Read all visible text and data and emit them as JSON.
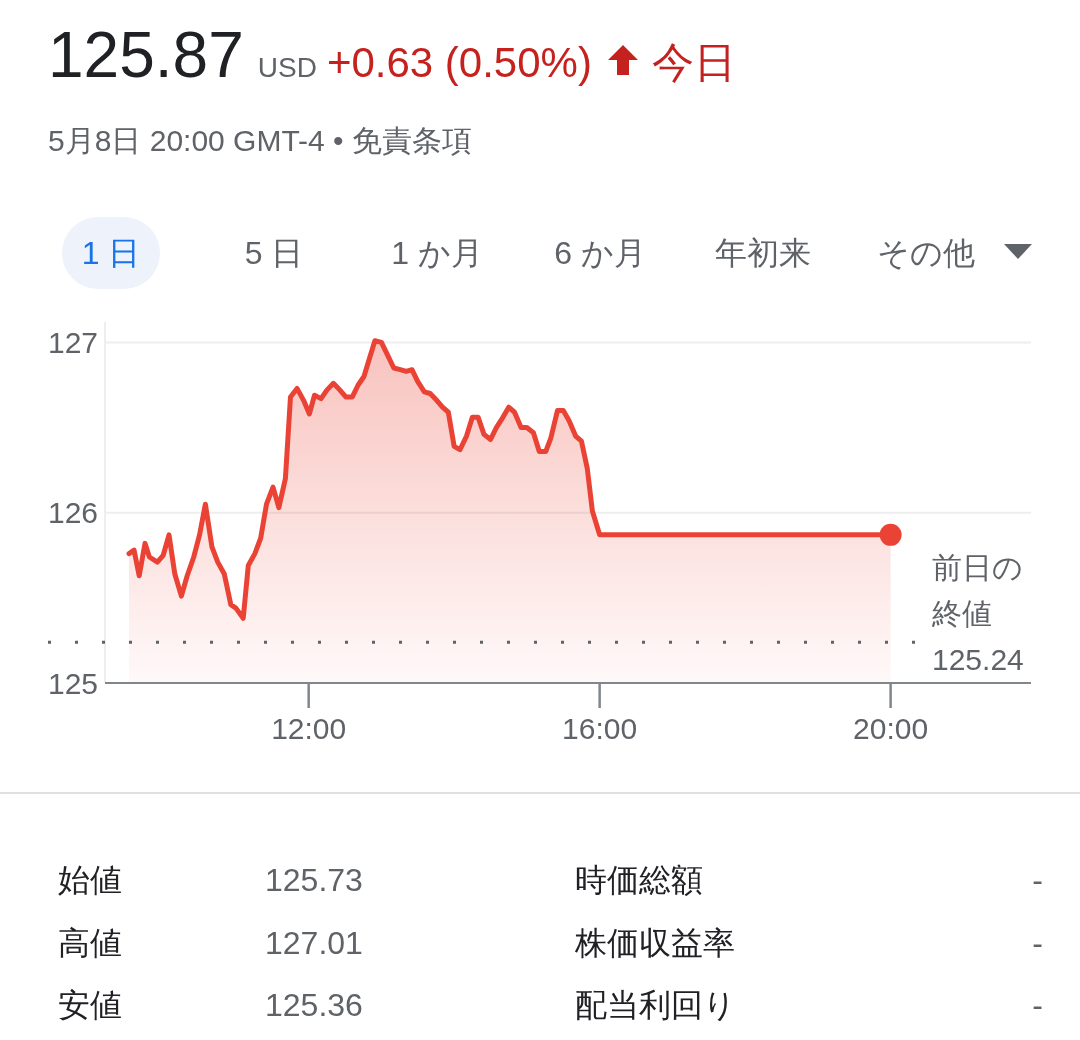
{
  "chart_data": {
    "type": "area",
    "title": "125.87",
    "subtitle": "5月8日 20:00 GMT-4 • 免責条項",
    "annotations": [
      "USD",
      "+0.63 (0.50%)",
      "今日",
      "1 日",
      "5 日",
      "1 か月",
      "6 か月",
      "年初来",
      "その他",
      "始値",
      "125.73",
      "時価総額",
      "-",
      "高値",
      "127.01",
      "株価収益率",
      "-",
      "安値",
      "125.36",
      "配当利回り",
      "-"
    ],
    "xlim": [
      9.2,
      21.93
    ],
    "xticks": [
      {
        "value": 12,
        "label": "12:00"
      },
      {
        "value": 16,
        "label": "16:00"
      },
      {
        "value": 20,
        "label": "20:00"
      }
    ],
    "ylim": [
      125,
      127.12
    ],
    "yticks": [
      125,
      126,
      127
    ],
    "grid": "y",
    "ref_lines": [
      {
        "axis": "y",
        "value": 125.24,
        "label": "前日の終値 125.24",
        "color": "#5f6368",
        "line_style": "dotted"
      }
    ],
    "series": [
      {
        "color": "#ea4335",
        "x": [
          9.53,
          9.6,
          9.67,
          9.75,
          9.81,
          9.92,
          10.0,
          10.08,
          10.16,
          10.25,
          10.33,
          10.42,
          10.5,
          10.58,
          10.67,
          10.75,
          10.84,
          10.93,
          11.0,
          11.1,
          11.17,
          11.26,
          11.34,
          11.42,
          11.51,
          11.59,
          11.68,
          11.75,
          11.84,
          11.93,
          12.01,
          12.08,
          12.17,
          12.25,
          12.34,
          12.43,
          12.51,
          12.6,
          12.68,
          12.76,
          12.91,
          13.0,
          13.08,
          13.17,
          13.26,
          13.34,
          13.42,
          13.5,
          13.59,
          13.67,
          13.76,
          13.84,
          13.92,
          14.0,
          14.08,
          14.17,
          14.25,
          14.33,
          14.41,
          14.5,
          14.58,
          14.67,
          14.75,
          14.83,
          14.92,
          15.0,
          15.09,
          15.17,
          15.26,
          15.33,
          15.42,
          15.5,
          15.58,
          15.67,
          15.75,
          15.83,
          15.9,
          16.0,
          20.0
        ],
        "values": [
          125.76,
          125.78,
          125.63,
          125.82,
          125.74,
          125.71,
          125.75,
          125.87,
          125.64,
          125.51,
          125.63,
          125.74,
          125.87,
          126.05,
          125.8,
          125.71,
          125.64,
          125.46,
          125.44,
          125.38,
          125.69,
          125.76,
          125.85,
          126.05,
          126.15,
          126.03,
          126.2,
          126.68,
          126.73,
          126.66,
          126.58,
          126.69,
          126.67,
          126.72,
          126.76,
          126.72,
          126.68,
          126.68,
          126.75,
          126.8,
          127.01,
          127.0,
          126.93,
          126.85,
          126.84,
          126.83,
          126.84,
          126.77,
          126.71,
          126.7,
          126.66,
          126.62,
          126.59,
          126.39,
          126.37,
          126.45,
          126.56,
          126.56,
          126.46,
          126.43,
          126.5,
          126.56,
          126.62,
          126.59,
          126.5,
          126.5,
          126.47,
          126.36,
          126.36,
          126.44,
          126.6,
          126.6,
          126.54,
          126.45,
          126.42,
          126.26,
          126.01,
          125.87,
          125.87
        ]
      },
      {
        "type": "scatter",
        "color": "#ea4335",
        "x": [
          20
        ],
        "values": [
          125.87
        ]
      }
    ]
  }
}
